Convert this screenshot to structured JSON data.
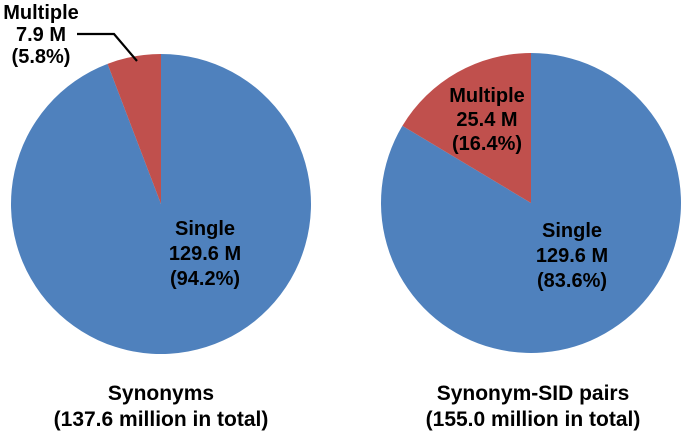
{
  "figure": {
    "background": "#ffffff",
    "text_color": "#000000",
    "accent_blue": "#4F81BD",
    "accent_red": "#C0504D"
  },
  "charts": [
    {
      "caption": {
        "line1": "Synonyms",
        "line2": "(137.6 million in total)"
      },
      "labels": {
        "single": {
          "name": "Single",
          "value": "129.6 M",
          "percent": "(94.2%)"
        },
        "multiple": {
          "name": "Multiple",
          "value": "7.9 M",
          "percent": "(5.8%)"
        }
      }
    },
    {
      "caption": {
        "line1": "Synonym-SID pairs",
        "line2": "(155.0 million in total)"
      },
      "labels": {
        "single": {
          "name": "Single",
          "value": "129.6 M",
          "percent": "(83.6%)"
        },
        "multiple": {
          "name": "Multiple",
          "value": "25.4 M",
          "percent": "(16.4%)"
        }
      }
    }
  ],
  "chart_data": [
    {
      "type": "pie",
      "title": "Synonyms (137.6 million in total)",
      "labels": [
        "Single",
        "Multiple"
      ],
      "values_millions": [
        129.6,
        7.9
      ],
      "percentages": [
        94.2,
        5.8
      ],
      "total_millions": 137.6,
      "colors": [
        "#4F81BD",
        "#C0504D"
      ],
      "start_angle_deg": 0,
      "direction": "clockwise",
      "legend": "none"
    },
    {
      "type": "pie",
      "title": "Synonym-SID pairs (155.0 million in total)",
      "labels": [
        "Single",
        "Multiple"
      ],
      "values_millions": [
        129.6,
        25.4
      ],
      "percentages": [
        83.6,
        16.4
      ],
      "total_millions": 155.0,
      "colors": [
        "#4F81BD",
        "#C0504D"
      ],
      "start_angle_deg": 0,
      "direction": "clockwise",
      "legend": "none"
    }
  ]
}
